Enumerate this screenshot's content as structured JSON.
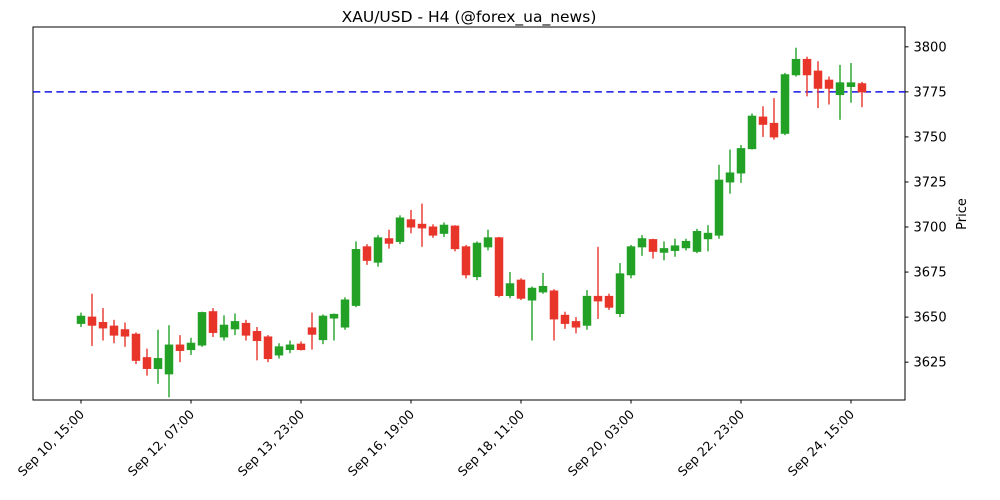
{
  "title": "XAU/USD - H4 (@forex_ua_news)",
  "chart_data": {
    "type": "candlestick",
    "title": "XAU/USD - H4 (@forex_ua_news)",
    "xlabel": "",
    "ylabel": "Price",
    "ylabel_side": "right",
    "grid": false,
    "legend": "none",
    "ylim": [
      3604,
      3811
    ],
    "yticks": [
      3625,
      3650,
      3675,
      3700,
      3725,
      3750,
      3775,
      3800
    ],
    "xtick_indices": [
      0,
      10,
      20,
      30,
      40,
      50,
      60,
      70
    ],
    "xtick_labels": [
      "Sep 10, 15:00",
      "Sep 12, 07:00",
      "Sep 13, 23:00",
      "Sep 16, 19:00",
      "Sep 18, 11:00",
      "Sep 20, 03:00",
      "Sep 22, 23:00",
      "Sep 24, 15:00"
    ],
    "xtick_rotation": 45,
    "hline": {
      "value": 3775,
      "color": "#1414e8",
      "style": "dashed"
    },
    "colors": {
      "up": "#23a127",
      "down": "#e8352a",
      "axis": "#000000",
      "text": "#000000"
    },
    "candles_format": [
      "open",
      "high",
      "low",
      "close"
    ],
    "candles": [
      [
        3646.5,
        3652.5,
        3644.5,
        3650.5
      ],
      [
        3650.0,
        3663.0,
        3634.0,
        3645.5
      ],
      [
        3647.0,
        3655.0,
        3637.0,
        3644.0
      ],
      [
        3645.0,
        3648.5,
        3635.5,
        3640.0
      ],
      [
        3643.0,
        3647.0,
        3633.5,
        3639.5
      ],
      [
        3640.5,
        3641.5,
        3624.0,
        3626.0
      ],
      [
        3627.5,
        3632.5,
        3617.5,
        3621.5
      ],
      [
        3621.5,
        3643.0,
        3613.0,
        3627.0
      ],
      [
        3618.5,
        3645.5,
        3605.5,
        3634.5
      ],
      [
        3634.5,
        3640.0,
        3625.0,
        3631.5
      ],
      [
        3632.0,
        3638.5,
        3629.0,
        3635.5
      ],
      [
        3634.5,
        3653.0,
        3633.5,
        3652.5
      ],
      [
        3653.0,
        3655.0,
        3639.0,
        3641.5
      ],
      [
        3639.0,
        3651.0,
        3637.0,
        3645.5
      ],
      [
        3643.5,
        3652.0,
        3640.0,
        3647.5
      ],
      [
        3646.5,
        3648.5,
        3637.0,
        3640.0
      ],
      [
        3642.0,
        3644.5,
        3626.0,
        3637.0
      ],
      [
        3639.0,
        3640.0,
        3625.0,
        3627.0
      ],
      [
        3629.0,
        3635.5,
        3627.0,
        3633.5
      ],
      [
        3632.0,
        3637.0,
        3630.0,
        3634.5
      ],
      [
        3635.0,
        3636.5,
        3631.5,
        3632.0
      ],
      [
        3644.0,
        3652.5,
        3632.0,
        3640.5
      ],
      [
        3637.5,
        3651.5,
        3635.0,
        3650.5
      ],
      [
        3649.5,
        3652.0,
        3637.0,
        3651.5
      ],
      [
        3644.5,
        3661.0,
        3643.0,
        3659.5
      ],
      [
        3656.5,
        3692.0,
        3655.5,
        3687.5
      ],
      [
        3689.0,
        3690.5,
        3679.0,
        3681.5
      ],
      [
        3680.5,
        3695.5,
        3678.0,
        3694.0
      ],
      [
        3693.5,
        3698.5,
        3688.0,
        3691.0
      ],
      [
        3692.0,
        3706.5,
        3690.5,
        3705.0
      ],
      [
        3704.0,
        3709.5,
        3696.5,
        3700.0
      ],
      [
        3701.5,
        3713.0,
        3689.0,
        3699.5
      ],
      [
        3700.0,
        3701.5,
        3694.0,
        3695.5
      ],
      [
        3696.5,
        3702.5,
        3694.5,
        3701.0
      ],
      [
        3700.5,
        3701.0,
        3686.5,
        3688.0
      ],
      [
        3689.0,
        3690.0,
        3671.5,
        3673.5
      ],
      [
        3672.5,
        3692.0,
        3670.5,
        3691.0
      ],
      [
        3689.0,
        3698.5,
        3687.0,
        3694.0
      ],
      [
        3694.0,
        3694.5,
        3661.0,
        3662.0
      ],
      [
        3662.0,
        3675.0,
        3660.5,
        3668.5
      ],
      [
        3670.5,
        3671.5,
        3659.5,
        3660.5
      ],
      [
        3659.5,
        3667.0,
        3637.0,
        3666.0
      ],
      [
        3664.0,
        3674.5,
        3663.0,
        3667.0
      ],
      [
        3664.5,
        3665.5,
        3637.0,
        3649.0
      ],
      [
        3651.0,
        3653.0,
        3643.5,
        3646.5
      ],
      [
        3647.5,
        3650.0,
        3641.0,
        3644.5
      ],
      [
        3645.5,
        3665.0,
        3643.0,
        3661.5
      ],
      [
        3661.5,
        3689.0,
        3649.0,
        3659.0
      ],
      [
        3661.5,
        3663.0,
        3654.0,
        3655.5
      ],
      [
        3652.0,
        3680.0,
        3650.0,
        3674.0
      ],
      [
        3673.5,
        3690.0,
        3671.5,
        3689.0
      ],
      [
        3689.0,
        3695.5,
        3684.0,
        3693.5
      ],
      [
        3693.0,
        3693.5,
        3682.5,
        3686.5
      ],
      [
        3686.0,
        3692.0,
        3681.5,
        3688.0
      ],
      [
        3687.0,
        3693.5,
        3683.5,
        3689.5
      ],
      [
        3688.5,
        3693.5,
        3687.0,
        3692.0
      ],
      [
        3686.5,
        3699.0,
        3685.5,
        3697.5
      ],
      [
        3693.5,
        3701.0,
        3686.5,
        3696.5
      ],
      [
        3695.5,
        3734.5,
        3693.5,
        3726.0
      ],
      [
        3725.0,
        3743.0,
        3718.5,
        3730.0
      ],
      [
        3730.0,
        3745.5,
        3724.5,
        3743.5
      ],
      [
        3743.5,
        3763.0,
        3743.0,
        3761.5
      ],
      [
        3761.0,
        3767.0,
        3750.0,
        3757.0
      ],
      [
        3757.5,
        3771.5,
        3748.5,
        3750.0
      ],
      [
        3752.0,
        3785.5,
        3751.0,
        3784.5
      ],
      [
        3784.5,
        3799.5,
        3783.5,
        3793.0
      ],
      [
        3793.0,
        3794.5,
        3772.5,
        3784.5
      ],
      [
        3786.5,
        3792.0,
        3766.0,
        3777.0
      ],
      [
        3781.5,
        3783.5,
        3768.0,
        3777.0
      ],
      [
        3773.5,
        3790.0,
        3759.5,
        3780.0
      ],
      [
        3778.0,
        3791.0,
        3769.0,
        3780.0
      ],
      [
        3779.5,
        3780.5,
        3766.5,
        3775.0
      ]
    ]
  }
}
